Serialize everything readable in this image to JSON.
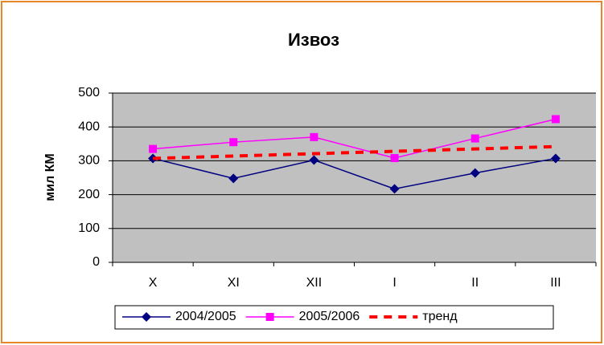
{
  "chart_data": {
    "type": "line",
    "title": "Извоз",
    "y_label": "мил КМ",
    "categories": [
      "X",
      "XI",
      "XII",
      "I",
      "II",
      "III"
    ],
    "series": [
      {
        "name": "2004/2005",
        "color": "#000080",
        "marker": "diamond",
        "style": "solid",
        "values": [
          307,
          248,
          302,
          217,
          264,
          307
        ]
      },
      {
        "name": "2005/2006",
        "color": "#ff00ff",
        "marker": "square",
        "style": "solid",
        "values": [
          335,
          355,
          370,
          308,
          366,
          423
        ]
      },
      {
        "name": "тренд",
        "color": "#ff0000",
        "marker": null,
        "style": "dashed",
        "values": [
          307,
          314,
          321,
          328,
          335,
          342
        ]
      }
    ],
    "ylim": [
      0,
      500
    ],
    "yticks": [
      0,
      100,
      200,
      300,
      400,
      500
    ],
    "grid": true,
    "legend": "bottom"
  }
}
